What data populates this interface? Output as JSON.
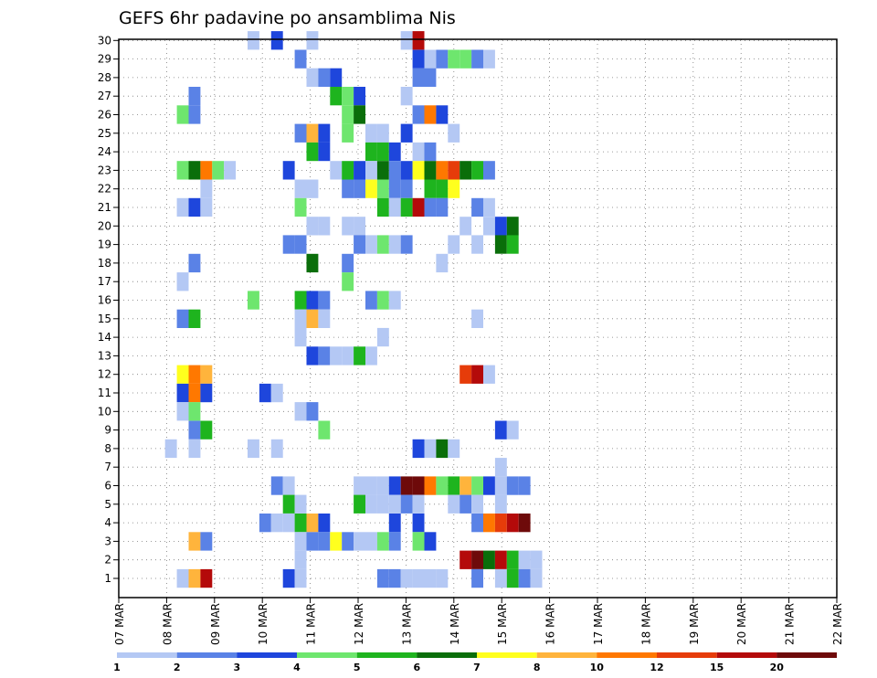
{
  "chart_data": {
    "type": "heatmap",
    "title": "GEFS 6hr padavine po ansamblima Nis",
    "xlabel": "",
    "ylabel": "",
    "grid": true,
    "y_members": [
      1,
      30
    ],
    "ytick_labels": [
      "1",
      "2",
      "3",
      "4",
      "5",
      "6",
      "7",
      "8",
      "9",
      "10",
      "11",
      "12",
      "13",
      "14",
      "15",
      "16",
      "17",
      "18",
      "19",
      "20",
      "21",
      "22",
      "23",
      "24",
      "25",
      "26",
      "27",
      "28",
      "29",
      "30"
    ],
    "xtick_labels": [
      "07 MAR",
      "08 MAR",
      "09 MAR",
      "10 MAR",
      "11 MAR",
      "12 MAR",
      "13 MAR",
      "14 MAR",
      "15 MAR",
      "16 MAR",
      "17 MAR",
      "18 MAR",
      "19 MAR",
      "20 MAR",
      "21 MAR",
      "22 MAR"
    ],
    "x_range_steps": [
      0,
      60
    ],
    "step_hours": 6,
    "colorbar": {
      "labels": [
        "1",
        "2",
        "3",
        "4",
        "5",
        "6",
        "7",
        "8",
        "10",
        "12",
        "15",
        "20"
      ],
      "colors": [
        "#b4c8f4",
        "#5a82e6",
        "#1e46dc",
        "#6ee66e",
        "#1eb41e",
        "#0a6e0a",
        "#ffff1e",
        "#ffb43c",
        "#ff7800",
        "#e63c0a",
        "#b40a0a",
        "#6e0a0a"
      ]
    },
    "cells": [
      [
        30,
        11,
        1
      ],
      [
        30,
        13,
        3
      ],
      [
        30,
        16,
        1
      ],
      [
        30,
        24,
        1
      ],
      [
        30,
        25,
        11
      ],
      [
        29,
        15,
        2
      ],
      [
        29,
        25,
        3
      ],
      [
        29,
        26,
        1
      ],
      [
        29,
        27,
        2
      ],
      [
        29,
        28,
        4
      ],
      [
        29,
        29,
        4
      ],
      [
        29,
        30,
        2
      ],
      [
        29,
        31,
        1
      ],
      [
        28,
        16,
        1
      ],
      [
        28,
        17,
        2
      ],
      [
        28,
        18,
        3
      ],
      [
        28,
        25,
        2
      ],
      [
        28,
        26,
        2
      ],
      [
        27,
        6,
        2
      ],
      [
        27,
        18,
        5
      ],
      [
        27,
        19,
        4
      ],
      [
        27,
        20,
        3
      ],
      [
        27,
        24,
        1
      ],
      [
        26,
        5,
        4
      ],
      [
        26,
        6,
        2
      ],
      [
        26,
        19,
        4
      ],
      [
        26,
        20,
        6
      ],
      [
        26,
        25,
        2
      ],
      [
        26,
        26,
        9
      ],
      [
        26,
        27,
        3
      ],
      [
        25,
        15,
        2
      ],
      [
        25,
        16,
        8
      ],
      [
        25,
        17,
        3
      ],
      [
        25,
        19,
        4
      ],
      [
        25,
        21,
        1
      ],
      [
        25,
        22,
        1
      ],
      [
        25,
        24,
        3
      ],
      [
        25,
        28,
        1
      ],
      [
        24,
        16,
        5
      ],
      [
        24,
        17,
        3
      ],
      [
        24,
        21,
        5
      ],
      [
        24,
        22,
        5
      ],
      [
        24,
        23,
        3
      ],
      [
        24,
        25,
        1
      ],
      [
        24,
        26,
        2
      ],
      [
        23,
        5,
        4
      ],
      [
        23,
        6,
        6
      ],
      [
        23,
        7,
        9
      ],
      [
        23,
        8,
        4
      ],
      [
        23,
        9,
        1
      ],
      [
        23,
        14,
        3
      ],
      [
        23,
        18,
        1
      ],
      [
        23,
        19,
        5
      ],
      [
        23,
        20,
        3
      ],
      [
        23,
        21,
        1
      ],
      [
        23,
        22,
        6
      ],
      [
        23,
        23,
        2
      ],
      [
        23,
        24,
        3
      ],
      [
        23,
        25,
        7
      ],
      [
        23,
        26,
        6
      ],
      [
        23,
        27,
        9
      ],
      [
        23,
        28,
        10
      ],
      [
        23,
        29,
        6
      ],
      [
        23,
        30,
        5
      ],
      [
        23,
        31,
        2
      ],
      [
        22,
        7,
        1
      ],
      [
        22,
        15,
        1
      ],
      [
        22,
        16,
        1
      ],
      [
        22,
        19,
        2
      ],
      [
        22,
        20,
        2
      ],
      [
        22,
        21,
        7
      ],
      [
        22,
        22,
        4
      ],
      [
        22,
        23,
        2
      ],
      [
        22,
        24,
        2
      ],
      [
        22,
        26,
        5
      ],
      [
        22,
        27,
        5
      ],
      [
        22,
        28,
        7
      ],
      [
        21,
        5,
        1
      ],
      [
        21,
        6,
        3
      ],
      [
        21,
        7,
        1
      ],
      [
        21,
        15,
        4
      ],
      [
        21,
        22,
        5
      ],
      [
        21,
        23,
        1
      ],
      [
        21,
        24,
        5
      ],
      [
        21,
        25,
        11
      ],
      [
        21,
        26,
        2
      ],
      [
        21,
        27,
        2
      ],
      [
        21,
        30,
        2
      ],
      [
        21,
        31,
        1
      ],
      [
        20,
        16,
        1
      ],
      [
        20,
        17,
        1
      ],
      [
        20,
        19,
        1
      ],
      [
        20,
        20,
        1
      ],
      [
        20,
        29,
        1
      ],
      [
        20,
        31,
        1
      ],
      [
        20,
        32,
        3
      ],
      [
        20,
        33,
        6
      ],
      [
        19,
        14,
        2
      ],
      [
        19,
        15,
        2
      ],
      [
        19,
        20,
        2
      ],
      [
        19,
        21,
        1
      ],
      [
        19,
        22,
        4
      ],
      [
        19,
        23,
        1
      ],
      [
        19,
        24,
        2
      ],
      [
        19,
        28,
        1
      ],
      [
        19,
        30,
        1
      ],
      [
        19,
        32,
        6
      ],
      [
        19,
        33,
        5
      ],
      [
        18,
        6,
        2
      ],
      [
        18,
        16,
        6
      ],
      [
        18,
        19,
        2
      ],
      [
        18,
        27,
        1
      ],
      [
        17,
        5,
        1
      ],
      [
        17,
        19,
        4
      ],
      [
        16,
        11,
        4
      ],
      [
        16,
        15,
        5
      ],
      [
        16,
        16,
        3
      ],
      [
        16,
        17,
        2
      ],
      [
        16,
        21,
        2
      ],
      [
        16,
        22,
        4
      ],
      [
        16,
        23,
        1
      ],
      [
        15,
        5,
        2
      ],
      [
        15,
        6,
        5
      ],
      [
        15,
        15,
        1
      ],
      [
        15,
        16,
        8
      ],
      [
        15,
        17,
        1
      ],
      [
        15,
        30,
        1
      ],
      [
        14,
        15,
        1
      ],
      [
        14,
        22,
        1
      ],
      [
        13,
        16,
        3
      ],
      [
        13,
        17,
        2
      ],
      [
        13,
        18,
        1
      ],
      [
        13,
        19,
        1
      ],
      [
        13,
        20,
        5
      ],
      [
        13,
        21,
        1
      ],
      [
        12,
        5,
        7
      ],
      [
        12,
        6,
        9
      ],
      [
        12,
        7,
        8
      ],
      [
        12,
        29,
        10
      ],
      [
        12,
        30,
        11
      ],
      [
        12,
        31,
        1
      ],
      [
        11,
        5,
        3
      ],
      [
        11,
        6,
        9
      ],
      [
        11,
        7,
        3
      ],
      [
        11,
        12,
        3
      ],
      [
        11,
        13,
        1
      ],
      [
        10,
        5,
        1
      ],
      [
        10,
        6,
        4
      ],
      [
        10,
        15,
        1
      ],
      [
        10,
        16,
        2
      ],
      [
        9,
        6,
        2
      ],
      [
        9,
        7,
        5
      ],
      [
        9,
        17,
        4
      ],
      [
        9,
        32,
        3
      ],
      [
        9,
        33,
        1
      ],
      [
        8,
        4,
        1
      ],
      [
        8,
        6,
        1
      ],
      [
        8,
        11,
        1
      ],
      [
        8,
        13,
        1
      ],
      [
        8,
        25,
        3
      ],
      [
        8,
        26,
        1
      ],
      [
        8,
        27,
        6
      ],
      [
        8,
        28,
        1
      ],
      [
        7,
        32,
        1
      ],
      [
        6,
        13,
        2
      ],
      [
        6,
        14,
        1
      ],
      [
        6,
        20,
        1
      ],
      [
        6,
        21,
        1
      ],
      [
        6,
        22,
        1
      ],
      [
        6,
        23,
        3
      ],
      [
        6,
        24,
        12
      ],
      [
        6,
        25,
        12
      ],
      [
        6,
        26,
        9
      ],
      [
        6,
        27,
        4
      ],
      [
        6,
        28,
        5
      ],
      [
        6,
        29,
        8
      ],
      [
        6,
        30,
        4
      ],
      [
        6,
        31,
        3
      ],
      [
        6,
        32,
        1
      ],
      [
        6,
        33,
        2
      ],
      [
        6,
        34,
        2
      ],
      [
        5,
        14,
        5
      ],
      [
        5,
        15,
        1
      ],
      [
        5,
        20,
        5
      ],
      [
        5,
        21,
        1
      ],
      [
        5,
        22,
        1
      ],
      [
        5,
        23,
        1
      ],
      [
        5,
        24,
        2
      ],
      [
        5,
        25,
        1
      ],
      [
        5,
        28,
        1
      ],
      [
        5,
        29,
        2
      ],
      [
        5,
        30,
        1
      ],
      [
        5,
        32,
        1
      ],
      [
        4,
        12,
        2
      ],
      [
        4,
        13,
        1
      ],
      [
        4,
        14,
        1
      ],
      [
        4,
        15,
        5
      ],
      [
        4,
        16,
        8
      ],
      [
        4,
        17,
        3
      ],
      [
        4,
        23,
        3
      ],
      [
        4,
        25,
        3
      ],
      [
        4,
        30,
        2
      ],
      [
        4,
        31,
        9
      ],
      [
        4,
        32,
        10
      ],
      [
        4,
        33,
        11
      ],
      [
        4,
        34,
        12
      ],
      [
        3,
        6,
        8
      ],
      [
        3,
        7,
        2
      ],
      [
        3,
        15,
        1
      ],
      [
        3,
        16,
        2
      ],
      [
        3,
        17,
        2
      ],
      [
        3,
        18,
        7
      ],
      [
        3,
        19,
        2
      ],
      [
        3,
        20,
        1
      ],
      [
        3,
        21,
        1
      ],
      [
        3,
        22,
        4
      ],
      [
        3,
        23,
        2
      ],
      [
        3,
        25,
        4
      ],
      [
        3,
        26,
        3
      ],
      [
        2,
        15,
        1
      ],
      [
        2,
        29,
        11
      ],
      [
        2,
        30,
        12
      ],
      [
        2,
        31,
        6
      ],
      [
        2,
        32,
        11
      ],
      [
        2,
        33,
        5
      ],
      [
        2,
        34,
        1
      ],
      [
        2,
        35,
        1
      ],
      [
        1,
        5,
        1
      ],
      [
        1,
        6,
        8
      ],
      [
        1,
        7,
        11
      ],
      [
        1,
        14,
        3
      ],
      [
        1,
        15,
        1
      ],
      [
        1,
        22,
        2
      ],
      [
        1,
        23,
        2
      ],
      [
        1,
        24,
        1
      ],
      [
        1,
        25,
        1
      ],
      [
        1,
        26,
        1
      ],
      [
        1,
        27,
        1
      ],
      [
        1,
        30,
        2
      ],
      [
        1,
        32,
        1
      ],
      [
        1,
        33,
        5
      ],
      [
        1,
        34,
        2
      ],
      [
        1,
        35,
        1
      ]
    ]
  }
}
